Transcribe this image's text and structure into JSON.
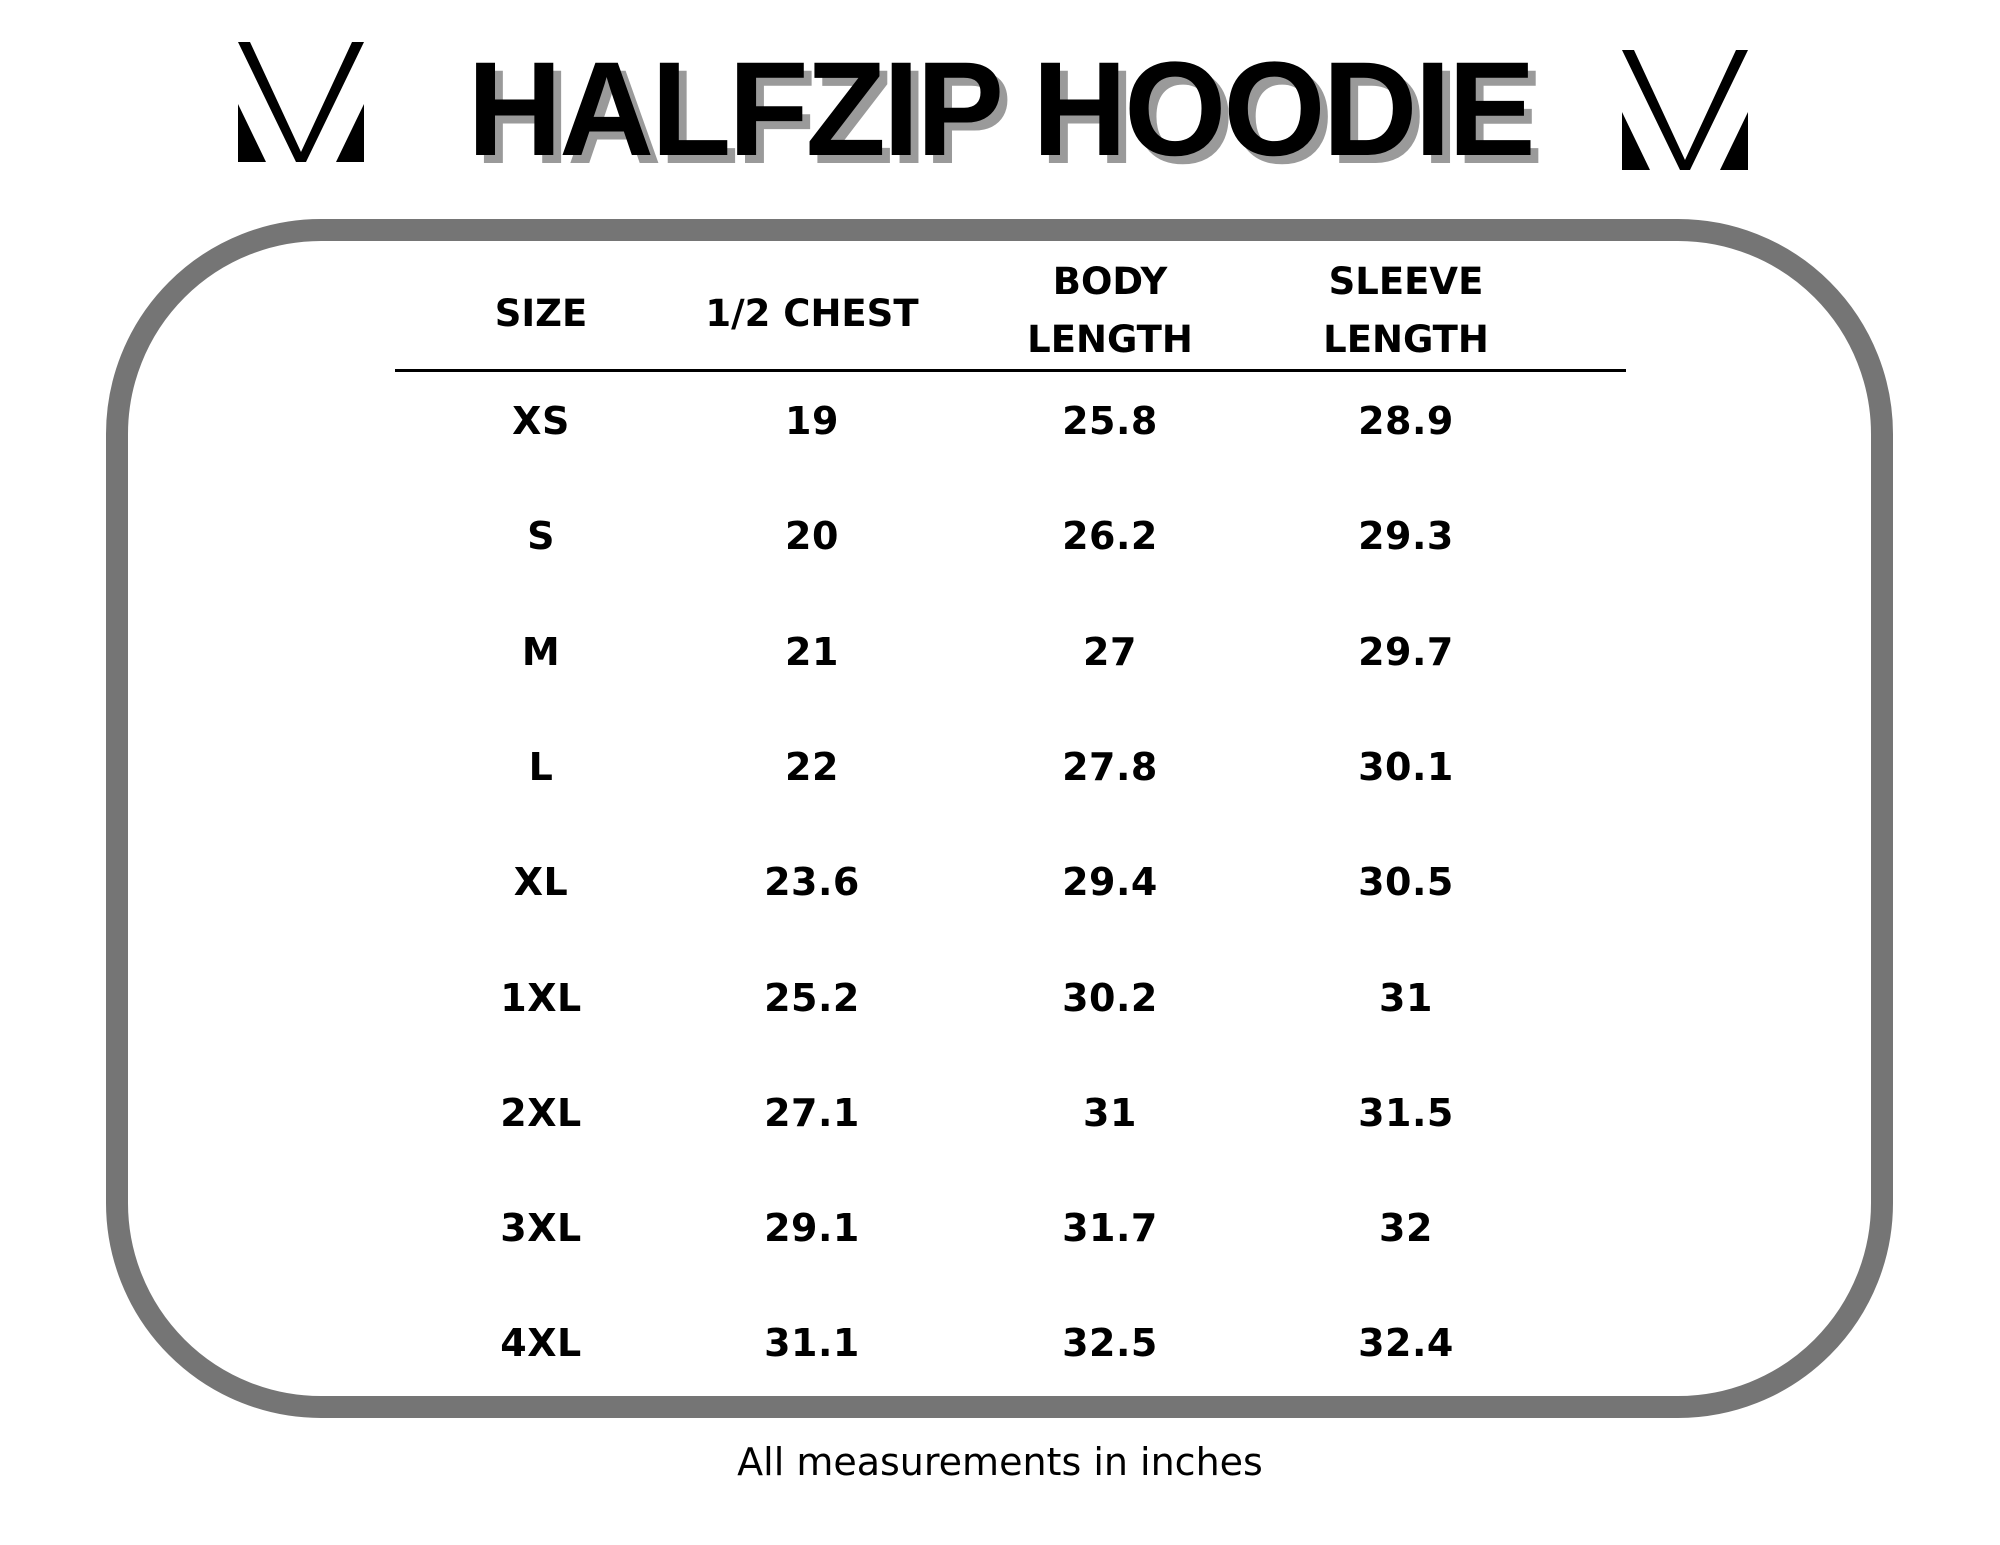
{
  "brand": {
    "logo_icon": "m-monogram-logo-icon"
  },
  "title": "HALFZIP HOODIE",
  "table": {
    "headers": [
      [
        "SIZE"
      ],
      [
        "1/2 CHEST"
      ],
      [
        "BODY",
        "LENGTH"
      ],
      [
        "SLEEVE",
        "LENGTH"
      ]
    ],
    "rows": [
      [
        "XS",
        "19",
        "25.8",
        "28.9"
      ],
      [
        "S",
        "20",
        "26.2",
        "29.3"
      ],
      [
        "M",
        "21",
        "27",
        "29.7"
      ],
      [
        "L",
        "22",
        "27.8",
        "30.1"
      ],
      [
        "XL",
        "23.6",
        "29.4",
        "30.5"
      ],
      [
        "1XL",
        "25.2",
        "30.2",
        "31"
      ],
      [
        "2XL",
        "27.1",
        "31",
        "31.5"
      ],
      [
        "3XL",
        "29.1",
        "31.7",
        "32"
      ],
      [
        "4XL",
        "31.1",
        "32.5",
        "32.4"
      ]
    ]
  },
  "footer": "All measurements in inches",
  "colors": {
    "frame": "#757575",
    "title_shadow": "#9a9a9a"
  }
}
